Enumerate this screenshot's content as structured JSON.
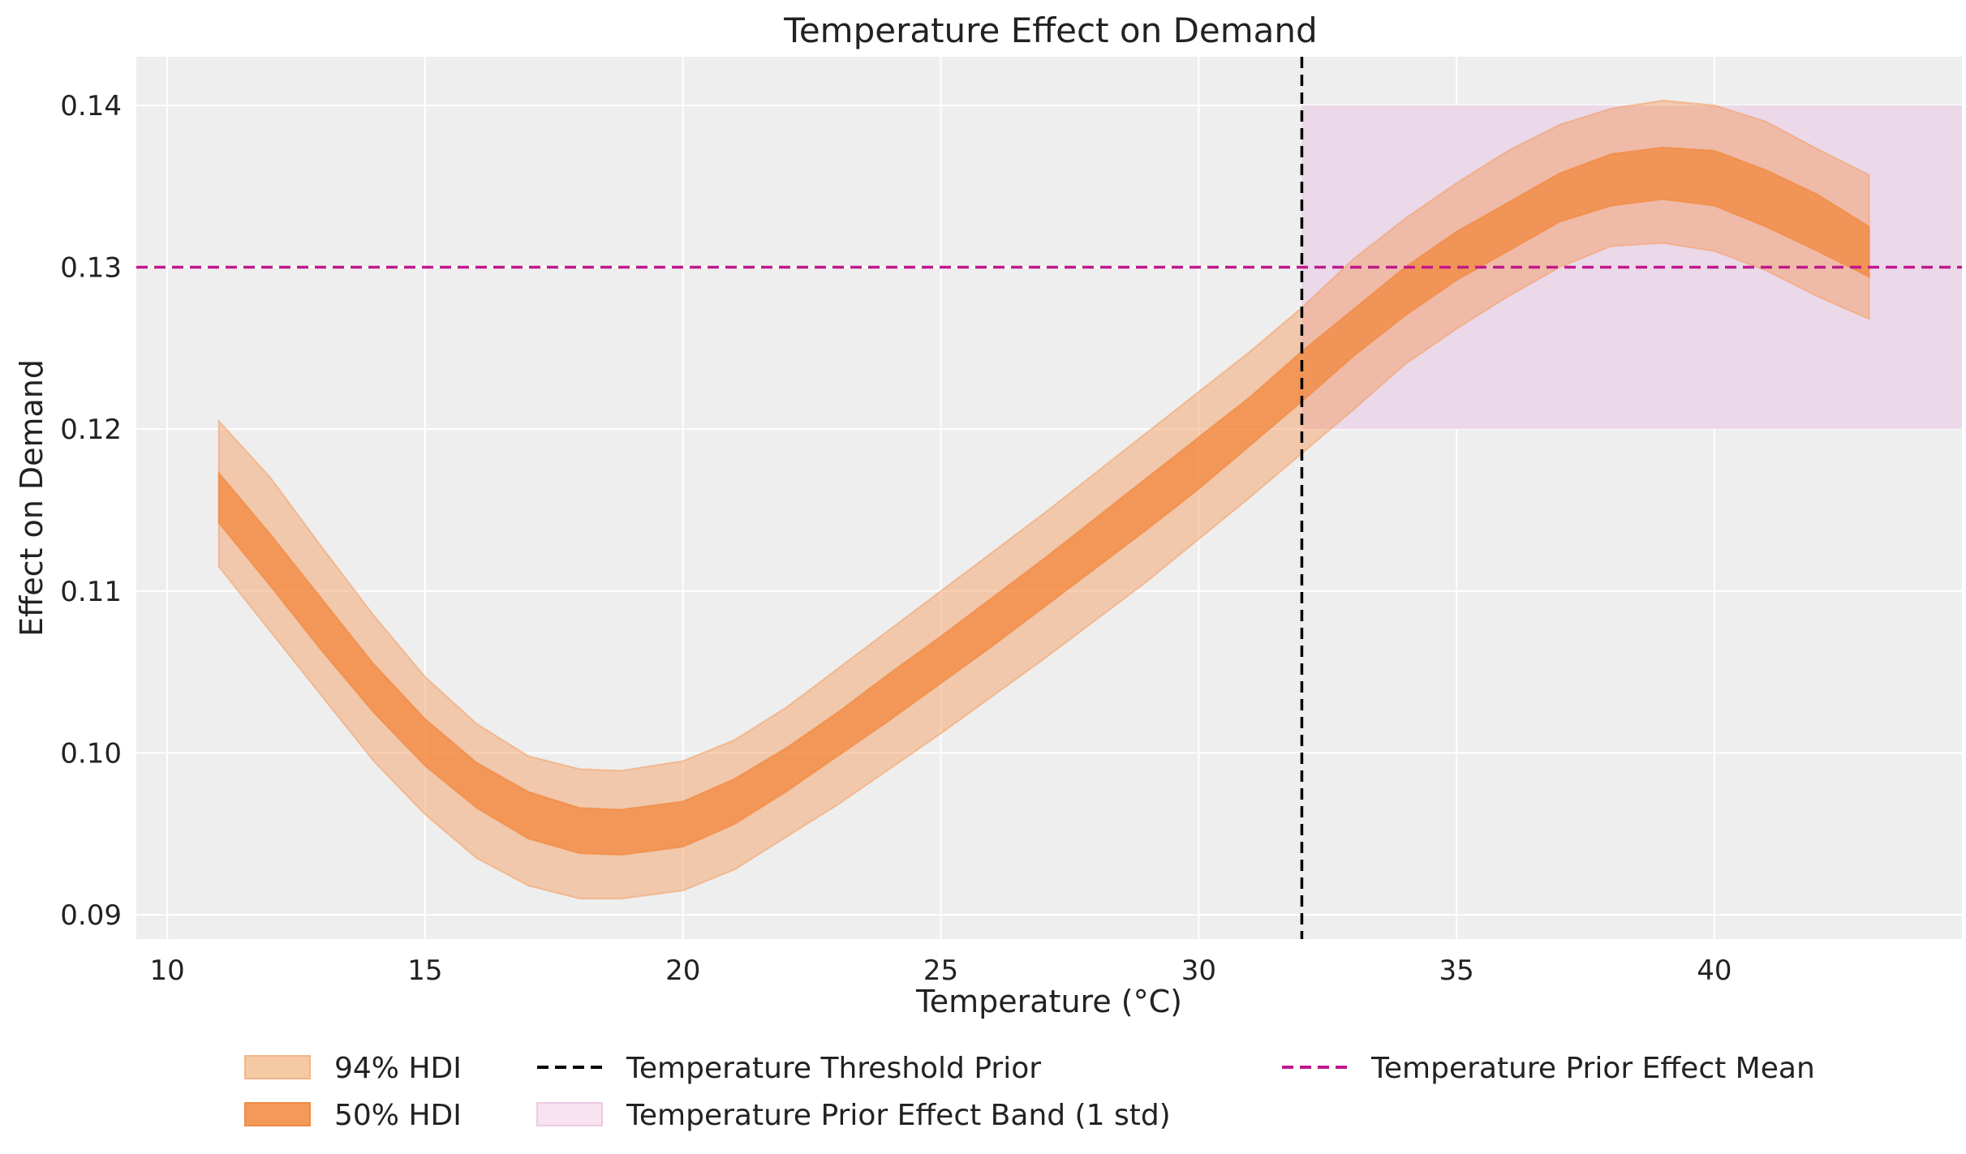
{
  "chart_data": {
    "type": "area",
    "title": "Temperature Effect on Demand",
    "xlabel": "Temperature (°C)",
    "ylabel": "Effect on Demand",
    "xlim": [
      9.4,
      44.8
    ],
    "ylim": [
      0.0885,
      0.143
    ],
    "x_ticks": [
      10,
      15,
      20,
      25,
      30,
      35,
      40
    ],
    "y_ticks": [
      0.09,
      0.1,
      0.11,
      0.12,
      0.13,
      0.14
    ],
    "y_tick_labels": [
      "0.09",
      "0.10",
      "0.11",
      "0.12",
      "0.13",
      "0.14"
    ],
    "grid": true,
    "legend_position": "bottom",
    "colors": {
      "hdi94": "#f5c9a4",
      "hdi50": "#f39a5a",
      "threshold": "#000000",
      "band": "#ead5e7",
      "mean_line": "#c0188c",
      "plot_bg": "#eeeeee",
      "grid": "#ffffff"
    },
    "x": [
      11,
      12,
      13,
      14,
      15,
      16,
      17,
      18,
      18.8,
      20,
      21,
      22,
      23,
      24,
      25,
      26,
      27,
      28,
      29,
      30,
      31,
      32,
      33,
      34,
      35,
      36,
      37,
      38,
      39,
      40,
      41,
      42,
      43
    ],
    "series": [
      {
        "name": "94% HDI",
        "lower": [
          0.1115,
          0.1075,
          0.1035,
          0.0995,
          0.0962,
          0.0935,
          0.0918,
          0.091,
          0.091,
          0.0915,
          0.0928,
          0.0948,
          0.0968,
          0.099,
          0.1012,
          0.1035,
          0.1058,
          0.1082,
          0.1106,
          0.1132,
          0.1158,
          0.1185,
          0.1212,
          0.124,
          0.1262,
          0.1282,
          0.13,
          0.1313,
          0.1315,
          0.131,
          0.1298,
          0.1282,
          0.1268
        ],
        "upper": [
          0.1205,
          0.117,
          0.1127,
          0.1085,
          0.1047,
          0.1018,
          0.0998,
          0.099,
          0.0989,
          0.0995,
          0.1008,
          0.1028,
          0.1052,
          0.1076,
          0.11,
          0.1124,
          0.1148,
          0.1173,
          0.1198,
          0.1223,
          0.1248,
          0.1275,
          0.1305,
          0.133,
          0.1352,
          0.1372,
          0.1388,
          0.1398,
          0.1403,
          0.14,
          0.139,
          0.1373,
          0.1357
        ]
      },
      {
        "name": "50% HDI",
        "lower": [
          0.1142,
          0.1103,
          0.1063,
          0.1025,
          0.0992,
          0.0966,
          0.0947,
          0.0938,
          0.0937,
          0.0942,
          0.0956,
          0.0976,
          0.0998,
          0.102,
          0.1043,
          0.1066,
          0.109,
          0.1114,
          0.1138,
          0.1163,
          0.119,
          0.1217,
          0.1245,
          0.127,
          0.1292,
          0.131,
          0.1328,
          0.1338,
          0.1342,
          0.1338,
          0.1325,
          0.131,
          0.1294
        ],
        "upper": [
          0.1173,
          0.1135,
          0.1095,
          0.1055,
          0.1021,
          0.0994,
          0.0976,
          0.0966,
          0.0965,
          0.097,
          0.0984,
          0.1003,
          0.1025,
          0.1049,
          0.1072,
          0.1096,
          0.112,
          0.1145,
          0.117,
          0.1195,
          0.122,
          0.1248,
          0.1274,
          0.13,
          0.1322,
          0.134,
          0.1358,
          0.137,
          0.1374,
          0.1372,
          0.136,
          0.1345,
          0.1325
        ]
      }
    ],
    "threshold": {
      "name": "Temperature Threshold Prior",
      "x": 32
    },
    "prior_mean": {
      "name": "Temperature Prior Effect Mean",
      "y": 0.13
    },
    "prior_band": {
      "name": "Temperature Prior Effect Band (1 std)",
      "x_start": 32,
      "y_low": 0.12,
      "y_high": 0.14
    },
    "legend": {
      "hdi94": "94% HDI",
      "hdi50": "50% HDI",
      "threshold": "Temperature Threshold Prior",
      "band": "Temperature Prior Effect Band (1 std)",
      "mean": "Temperature Prior Effect Mean"
    }
  }
}
